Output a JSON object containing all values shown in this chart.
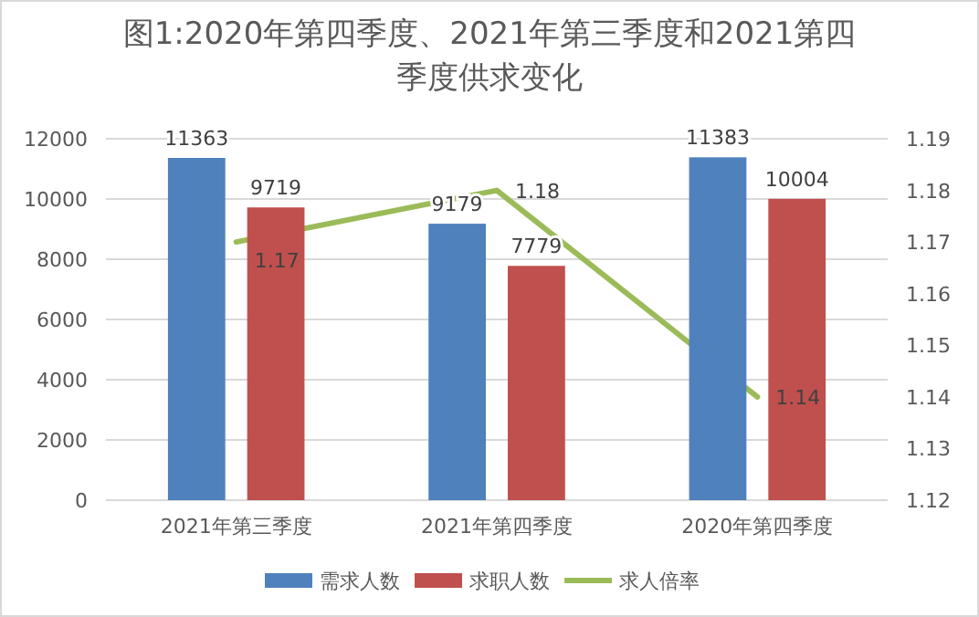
{
  "chart_data": {
    "type": "bar",
    "title": "图1:2020年第四季度、2021年第三季度和2021第四季度供求变化",
    "categories": [
      "2021年第三季度",
      "2021年第四季度",
      "2020年第四季度"
    ],
    "series": [
      {
        "name": "需求人数",
        "color": "#4f81bd",
        "values": [
          11363,
          9179,
          11383
        ]
      },
      {
        "name": "求职人数",
        "color": "#c0504d",
        "values": [
          9719,
          7779,
          10004
        ]
      },
      {
        "name": "求人倍率",
        "color": "#9bbb59",
        "type": "line",
        "axis": "y2",
        "values": [
          1.17,
          1.18,
          1.14
        ]
      }
    ],
    "ylim": [
      0,
      12000
    ],
    "yticks": [
      0,
      2000,
      4000,
      6000,
      8000,
      10000,
      12000
    ],
    "y2lim": [
      1.12,
      1.19
    ],
    "y2ticks": [
      1.12,
      1.13,
      1.14,
      1.15,
      1.16,
      1.17,
      1.18,
      1.19
    ],
    "grid": "y",
    "legend": "bottom",
    "data_labels": true
  }
}
